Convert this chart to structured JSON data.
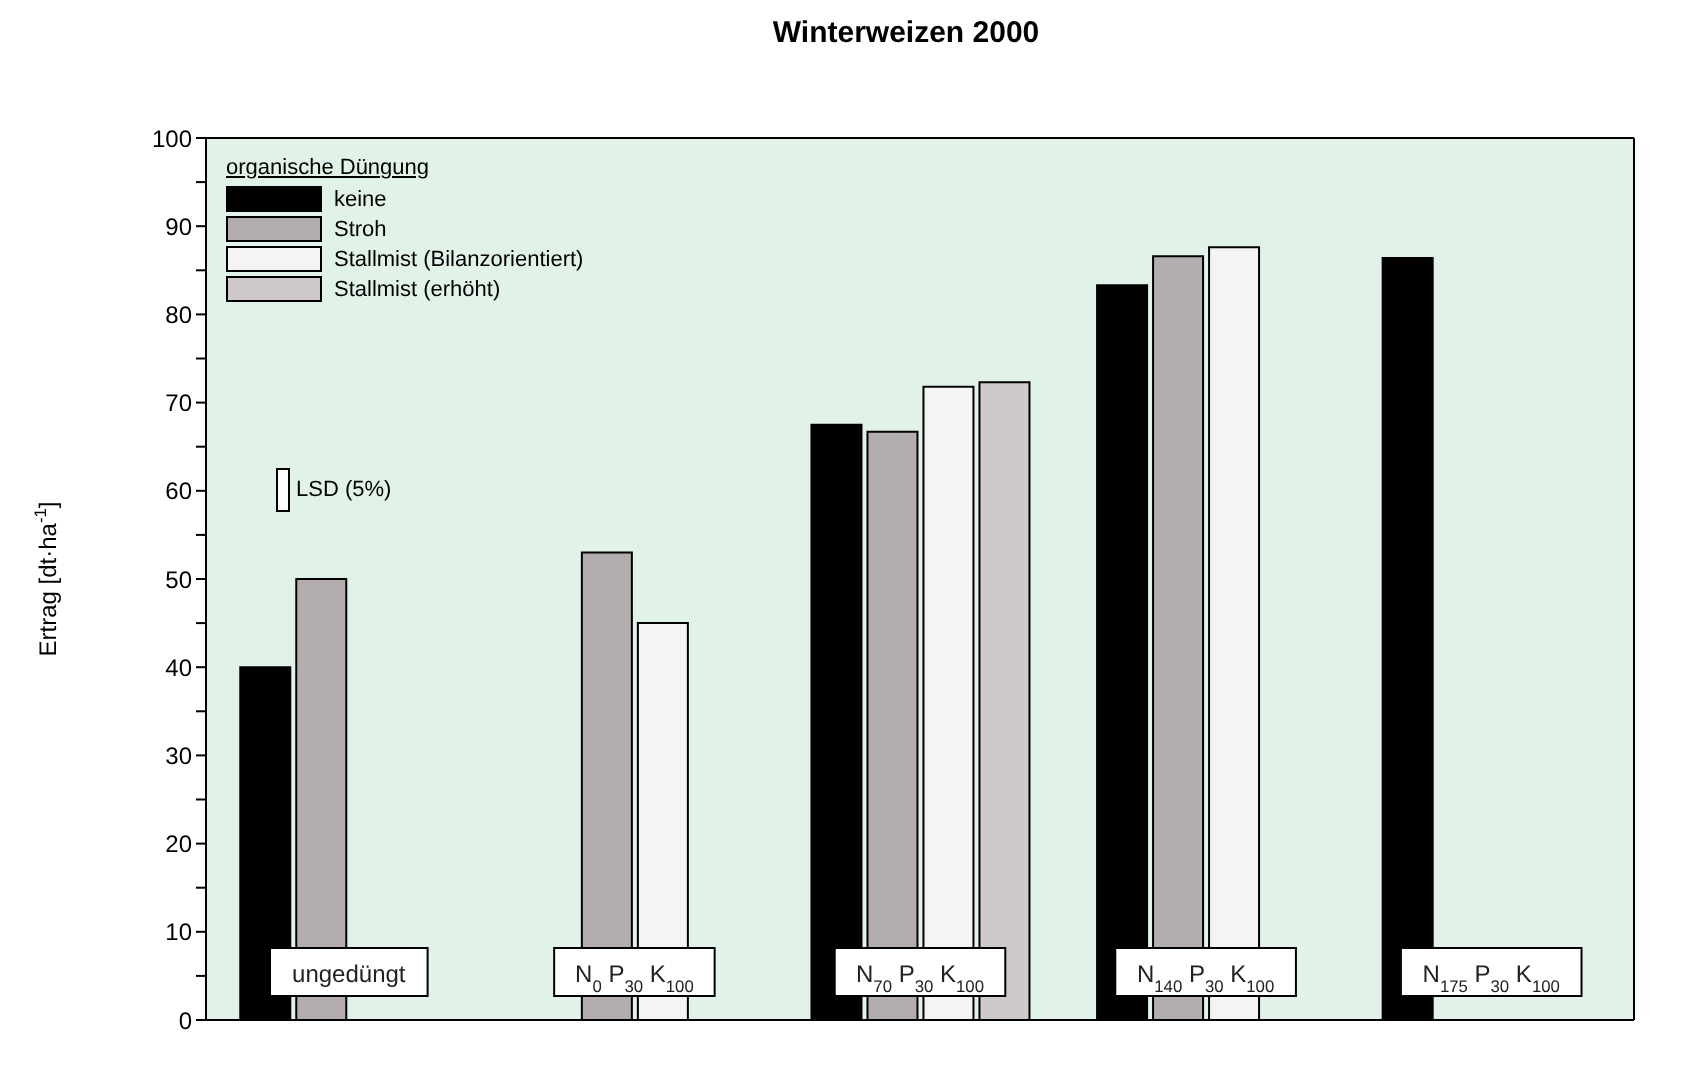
{
  "chart_data": {
    "type": "bar",
    "title": "Winterweizen 2000",
    "ylabel": "Ertrag [dt·ha$^{-1}$]",
    "legend_title": "organische Düngung",
    "categories": [
      "ungedüngt",
      "N$_{0}$ P$_{30}$ K$_{100}$",
      "N$_{70}$ P$_{30}$ K$_{100}$",
      "N$_{140}$ P$_{30}$ K$_{100}$",
      "N$_{175}$ P$_{30}$ K$_{100}$"
    ],
    "series": [
      {
        "name": "keine",
        "color": "#000000",
        "values": [
          40,
          null,
          67.5,
          83.3,
          86.4
        ]
      },
      {
        "name": "Stroh",
        "color": "#b3adad",
        "values": [
          50,
          53,
          66.7,
          86.6,
          null
        ]
      },
      {
        "name": "Stallmist (Bilanzorientiert)",
        "color": "#f4f4f4",
        "values": [
          null,
          45,
          71.8,
          87.6,
          null
        ]
      },
      {
        "name": "Stallmist (erhöht)",
        "color": "#cfc9c9",
        "values": [
          null,
          null,
          72.3,
          null,
          null
        ]
      }
    ],
    "ylim": [
      0,
      100
    ],
    "yticks": [
      0,
      {
        "value": 5,
        "label": null
      },
      10,
      {
        "value": 15,
        "label": null
      },
      20,
      {
        "value": 25,
        "label": null
      },
      30,
      {
        "value": 35,
        "label": null
      },
      40,
      {
        "value": 45,
        "label": null
      },
      50,
      {
        "value": 55,
        "label": null
      },
      60,
      {
        "value": 65,
        "label": null
      },
      70,
      {
        "value": 75,
        "label": null
      },
      80,
      {
        "value": 85,
        "label": null
      },
      90,
      {
        "value": 95,
        "label": null
      },
      100
    ],
    "annotations": [
      "LSD (5%)"
    ],
    "legend": "top left",
    "grid": false
  }
}
